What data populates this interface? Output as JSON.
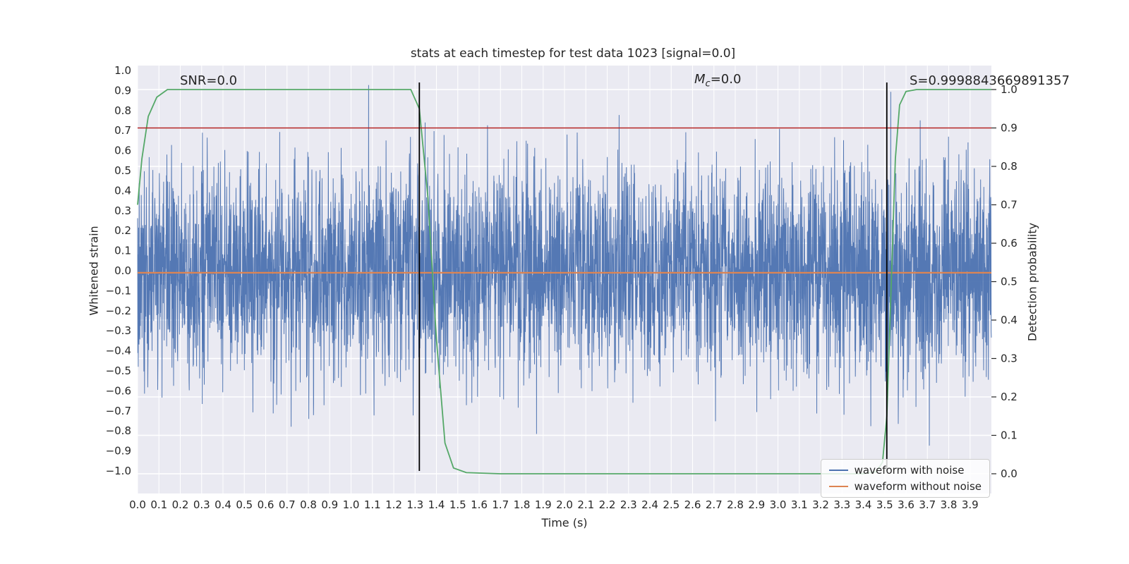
{
  "figure": {
    "axes_background": "#eaeaf2",
    "grid_color": "#ffffff",
    "text_color": "#262626"
  },
  "chart_data": {
    "type": "line",
    "title": "stats at each timestep for test data 1023 [signal=0.0]",
    "xlabel": "Time (s)",
    "ylabel_left": "Whitened strain",
    "ylabel_right": "Detection probability",
    "xlim": [
      0.0,
      4.0
    ],
    "ylim_left": [
      -1.0,
      1.0
    ],
    "ylim_right": [
      0.0,
      1.0
    ],
    "grid": true,
    "x_ticks": [
      "0.0",
      "0.1",
      "0.2",
      "0.3",
      "0.4",
      "0.5",
      "0.6",
      "0.7",
      "0.8",
      "0.9",
      "1.0",
      "1.1",
      "1.2",
      "1.3",
      "1.4",
      "1.5",
      "1.6",
      "1.7",
      "1.8",
      "1.9",
      "2.0",
      "2.1",
      "2.2",
      "2.3",
      "2.4",
      "2.5",
      "2.6",
      "2.7",
      "2.8",
      "2.9",
      "3.0",
      "3.1",
      "3.2",
      "3.3",
      "3.4",
      "3.5",
      "3.6",
      "3.7",
      "3.8",
      "3.9"
    ],
    "y_ticks_left": [
      "1.0",
      "0.9",
      "0.8",
      "0.7",
      "0.6",
      "0.5",
      "0.4",
      "0.3",
      "0.2",
      "0.1",
      "0.0",
      "−0.1",
      "−0.2",
      "−0.3",
      "−0.4",
      "−0.5",
      "−0.6",
      "−0.7",
      "−0.8",
      "−0.9",
      "−1.0"
    ],
    "y_ticks_right": [
      "1.0",
      "0.9",
      "0.8",
      "0.7",
      "0.6",
      "0.5",
      "0.4",
      "0.3",
      "0.2",
      "0.1",
      "0.0"
    ],
    "annotations": {
      "snr": {
        "text": "SNR=0.0"
      },
      "mc": {
        "var": "M",
        "sub": "c",
        "rest": "=0.0"
      },
      "s": {
        "text": "S=0.9998843669891357"
      }
    },
    "threshold": {
      "value": 0.9,
      "axis": "right",
      "color": "#b22222"
    },
    "event_markers": {
      "color": "#000000",
      "times": [
        1.32,
        3.51
      ],
      "ymin": -1.0,
      "ymax": 0.94
    },
    "series": [
      {
        "name": "waveform with noise",
        "color": "#4c72b0",
        "axis": "left",
        "kind": "gaussian-noise",
        "approx_std": 0.26,
        "clip": 0.97,
        "n_points": 4200
      },
      {
        "name": "waveform without noise",
        "color": "#dd8452",
        "axis": "left",
        "kind": "constant",
        "value": -0.01
      },
      {
        "name": "detection probability",
        "color": "#55a868",
        "axis": "right",
        "kind": "line",
        "x": [
          0.0,
          0.02,
          0.05,
          0.09,
          0.14,
          0.5,
          1.0,
          1.28,
          1.32,
          1.36,
          1.4,
          1.44,
          1.48,
          1.54,
          1.7,
          2.5,
          3.4,
          3.46,
          3.49,
          3.51,
          3.53,
          3.55,
          3.57,
          3.6,
          3.65,
          4.0
        ],
        "y": [
          0.7,
          0.82,
          0.93,
          0.98,
          1.0,
          1.0,
          1.0,
          1.0,
          0.95,
          0.72,
          0.35,
          0.08,
          0.015,
          0.003,
          0.0,
          0.0,
          0.0,
          0.005,
          0.03,
          0.15,
          0.48,
          0.82,
          0.96,
          0.995,
          1.0,
          1.0
        ]
      }
    ],
    "legend": {
      "position": "lower right",
      "entries": [
        {
          "label": "waveform with noise",
          "color": "#4c72b0"
        },
        {
          "label": "waveform without noise",
          "color": "#dd8452"
        }
      ]
    }
  }
}
